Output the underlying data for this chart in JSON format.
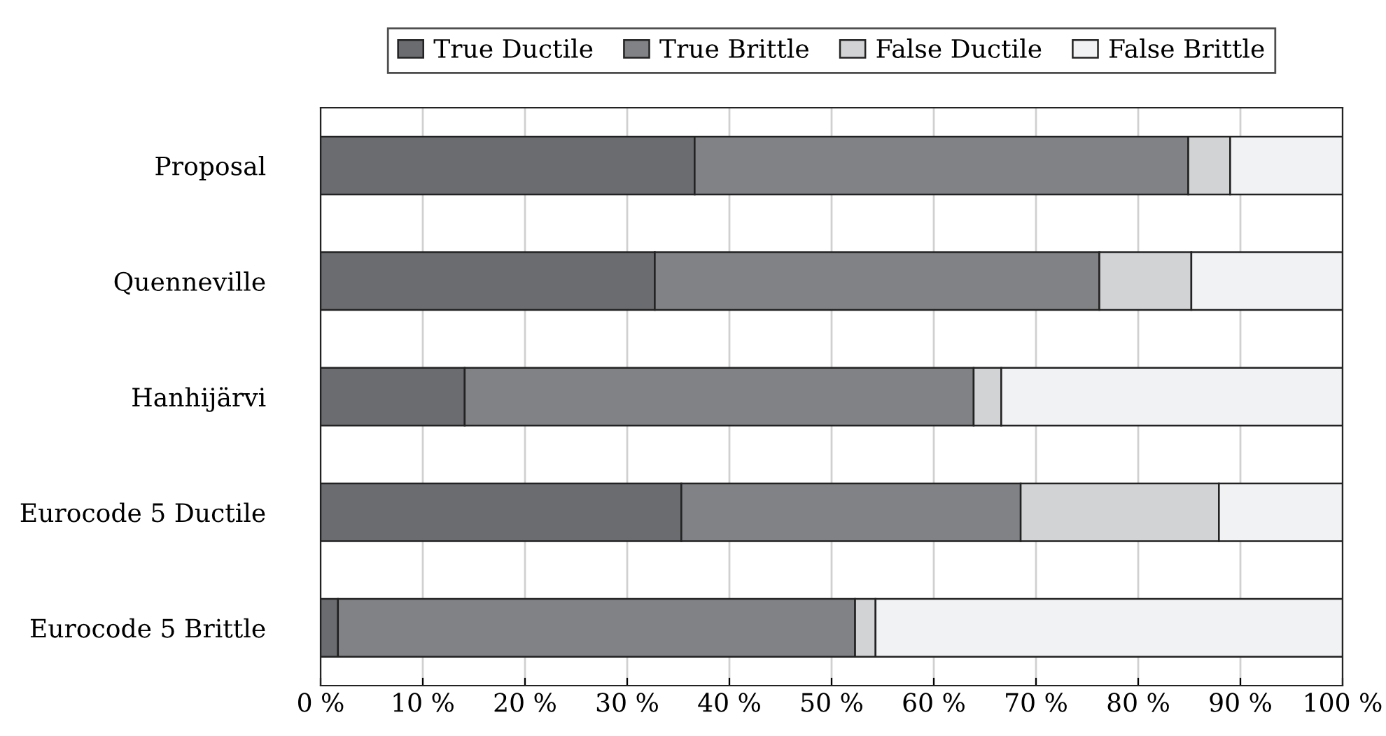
{
  "chart_data": {
    "type": "bar",
    "orientation": "horizontal",
    "stacked": true,
    "categories": [
      "Proposal",
      "Quenneville",
      "Hanhijärvi",
      "Eurocode 5 Ductile",
      "Eurocode 5 Brittle"
    ],
    "series": [
      {
        "name": "True Ductile",
        "color": "#6b6c70",
        "values": [
          36.6,
          32.7,
          14.1,
          35.3,
          1.7
        ]
      },
      {
        "name": "True Brittle",
        "color": "#818285",
        "values": [
          48.3,
          43.5,
          49.8,
          33.2,
          50.6
        ]
      },
      {
        "name": "False Ductile",
        "color": "#d2d3d5",
        "values": [
          4.1,
          9.0,
          2.7,
          19.4,
          2.0
        ]
      },
      {
        "name": "False Brittle",
        "color": "#f1f2f4",
        "values": [
          11.0,
          14.8,
          33.4,
          12.1,
          45.7
        ]
      }
    ],
    "xlim": [
      0,
      100
    ],
    "xticks": [
      {
        "value": 0,
        "label": "0 %"
      },
      {
        "value": 10,
        "label": "10 %"
      },
      {
        "value": 20,
        "label": "20 %"
      },
      {
        "value": 30,
        "label": "30 %"
      },
      {
        "value": 40,
        "label": "40 %"
      },
      {
        "value": 50,
        "label": "50 %"
      },
      {
        "value": 60,
        "label": "60 %"
      },
      {
        "value": 70,
        "label": "70 %"
      },
      {
        "value": 80,
        "label": "80 %"
      },
      {
        "value": 90,
        "label": "90 %"
      },
      {
        "value": 100,
        "label": "100 %"
      }
    ],
    "grid": "x",
    "legend": "top"
  }
}
